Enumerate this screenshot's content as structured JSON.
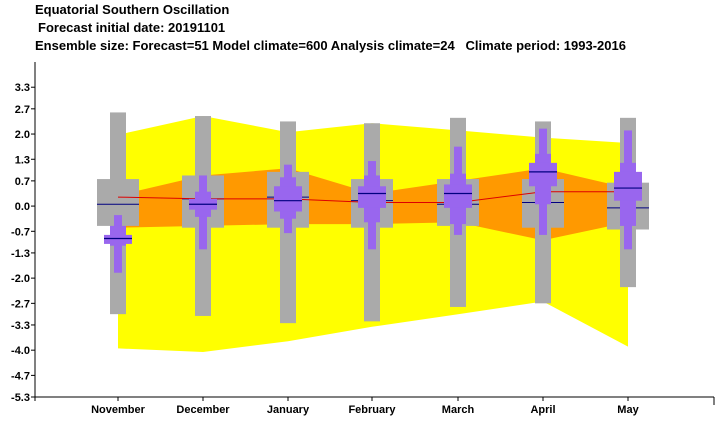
{
  "header": {
    "title": "Equatorial Southern Oscillation",
    "line2": "Forecast initial date: 20191101",
    "line3": "Ensemble size: Forecast=51 Model climate=600 Analysis climate=24   Climate period: 1993-2016"
  },
  "colors": {
    "outer_band": "#ffff00",
    "inner_band": "#ff9900",
    "climate_box": "#aaaaaa",
    "forecast_box": "#9966ee",
    "median_line": "#000080",
    "mean_line": "#dd0000"
  },
  "chart_data": {
    "type": "boxplot",
    "ylim": [
      -5.3,
      4.0
    ],
    "yticks": [
      "3.3",
      "2.7",
      "2.0",
      "1.3",
      "0.7",
      "0.0",
      "-0.7",
      "-1.3",
      "-2.0",
      "-2.7",
      "-3.3",
      "-4.0",
      "-4.7",
      "-5.3"
    ],
    "ytick_values": [
      3.3,
      2.7,
      2.0,
      1.3,
      0.7,
      0.0,
      -0.7,
      -1.3,
      -2.0,
      -2.7,
      -3.3,
      -4.0,
      -4.7,
      -5.3
    ],
    "categories": [
      "November",
      "December",
      "January",
      "February",
      "March",
      "April",
      "May"
    ],
    "outer_band": {
      "upper": [
        1.98,
        2.5,
        2.05,
        2.3,
        2.1,
        1.9,
        1.75
      ],
      "lower": [
        -3.95,
        -4.05,
        -3.75,
        -3.35,
        -3.0,
        -2.65,
        -3.9
      ]
    },
    "inner_band": {
      "upper": [
        0.3,
        0.85,
        1.05,
        0.35,
        0.7,
        1.05,
        0.5
      ],
      "lower": [
        -0.6,
        -0.55,
        -0.5,
        -0.5,
        -0.45,
        -0.95,
        -0.45
      ]
    },
    "climate": {
      "min": [
        -3.0,
        -3.05,
        -3.25,
        -3.2,
        -2.8,
        -2.7,
        -2.25
      ],
      "p25": [
        -0.55,
        -0.6,
        -0.6,
        -0.6,
        -0.55,
        -0.6,
        -0.65
      ],
      "median": [
        0.05,
        0.2,
        0.25,
        0.15,
        0.05,
        0.1,
        -0.05
      ],
      "p75": [
        0.75,
        0.85,
        0.95,
        0.75,
        0.75,
        0.75,
        0.65
      ],
      "max": [
        2.6,
        2.5,
        2.35,
        2.3,
        2.45,
        2.35,
        2.45
      ]
    },
    "forecast": {
      "min": [
        -1.85,
        -1.2,
        -0.75,
        -1.2,
        -0.8,
        -0.8,
        -1.2
      ],
      "p10": [
        -1.1,
        -0.3,
        -0.35,
        -0.45,
        -0.5,
        0.05,
        -0.55
      ],
      "p25": [
        -1.05,
        -0.1,
        -0.15,
        -0.05,
        -0.05,
        0.55,
        0.15
      ],
      "median": [
        -0.9,
        0.05,
        0.15,
        0.35,
        0.35,
        0.95,
        0.5
      ],
      "p75": [
        -0.8,
        0.2,
        0.55,
        0.55,
        0.6,
        1.2,
        0.95
      ],
      "p90": [
        -0.55,
        0.4,
        0.8,
        0.85,
        0.9,
        1.45,
        1.2
      ],
      "max": [
        -0.25,
        0.85,
        1.15,
        1.25,
        1.65,
        2.15,
        2.1
      ]
    },
    "ensemble_mean": [
      0.25,
      0.2,
      0.2,
      0.1,
      0.1,
      0.4,
      0.4
    ],
    "grid": false
  }
}
